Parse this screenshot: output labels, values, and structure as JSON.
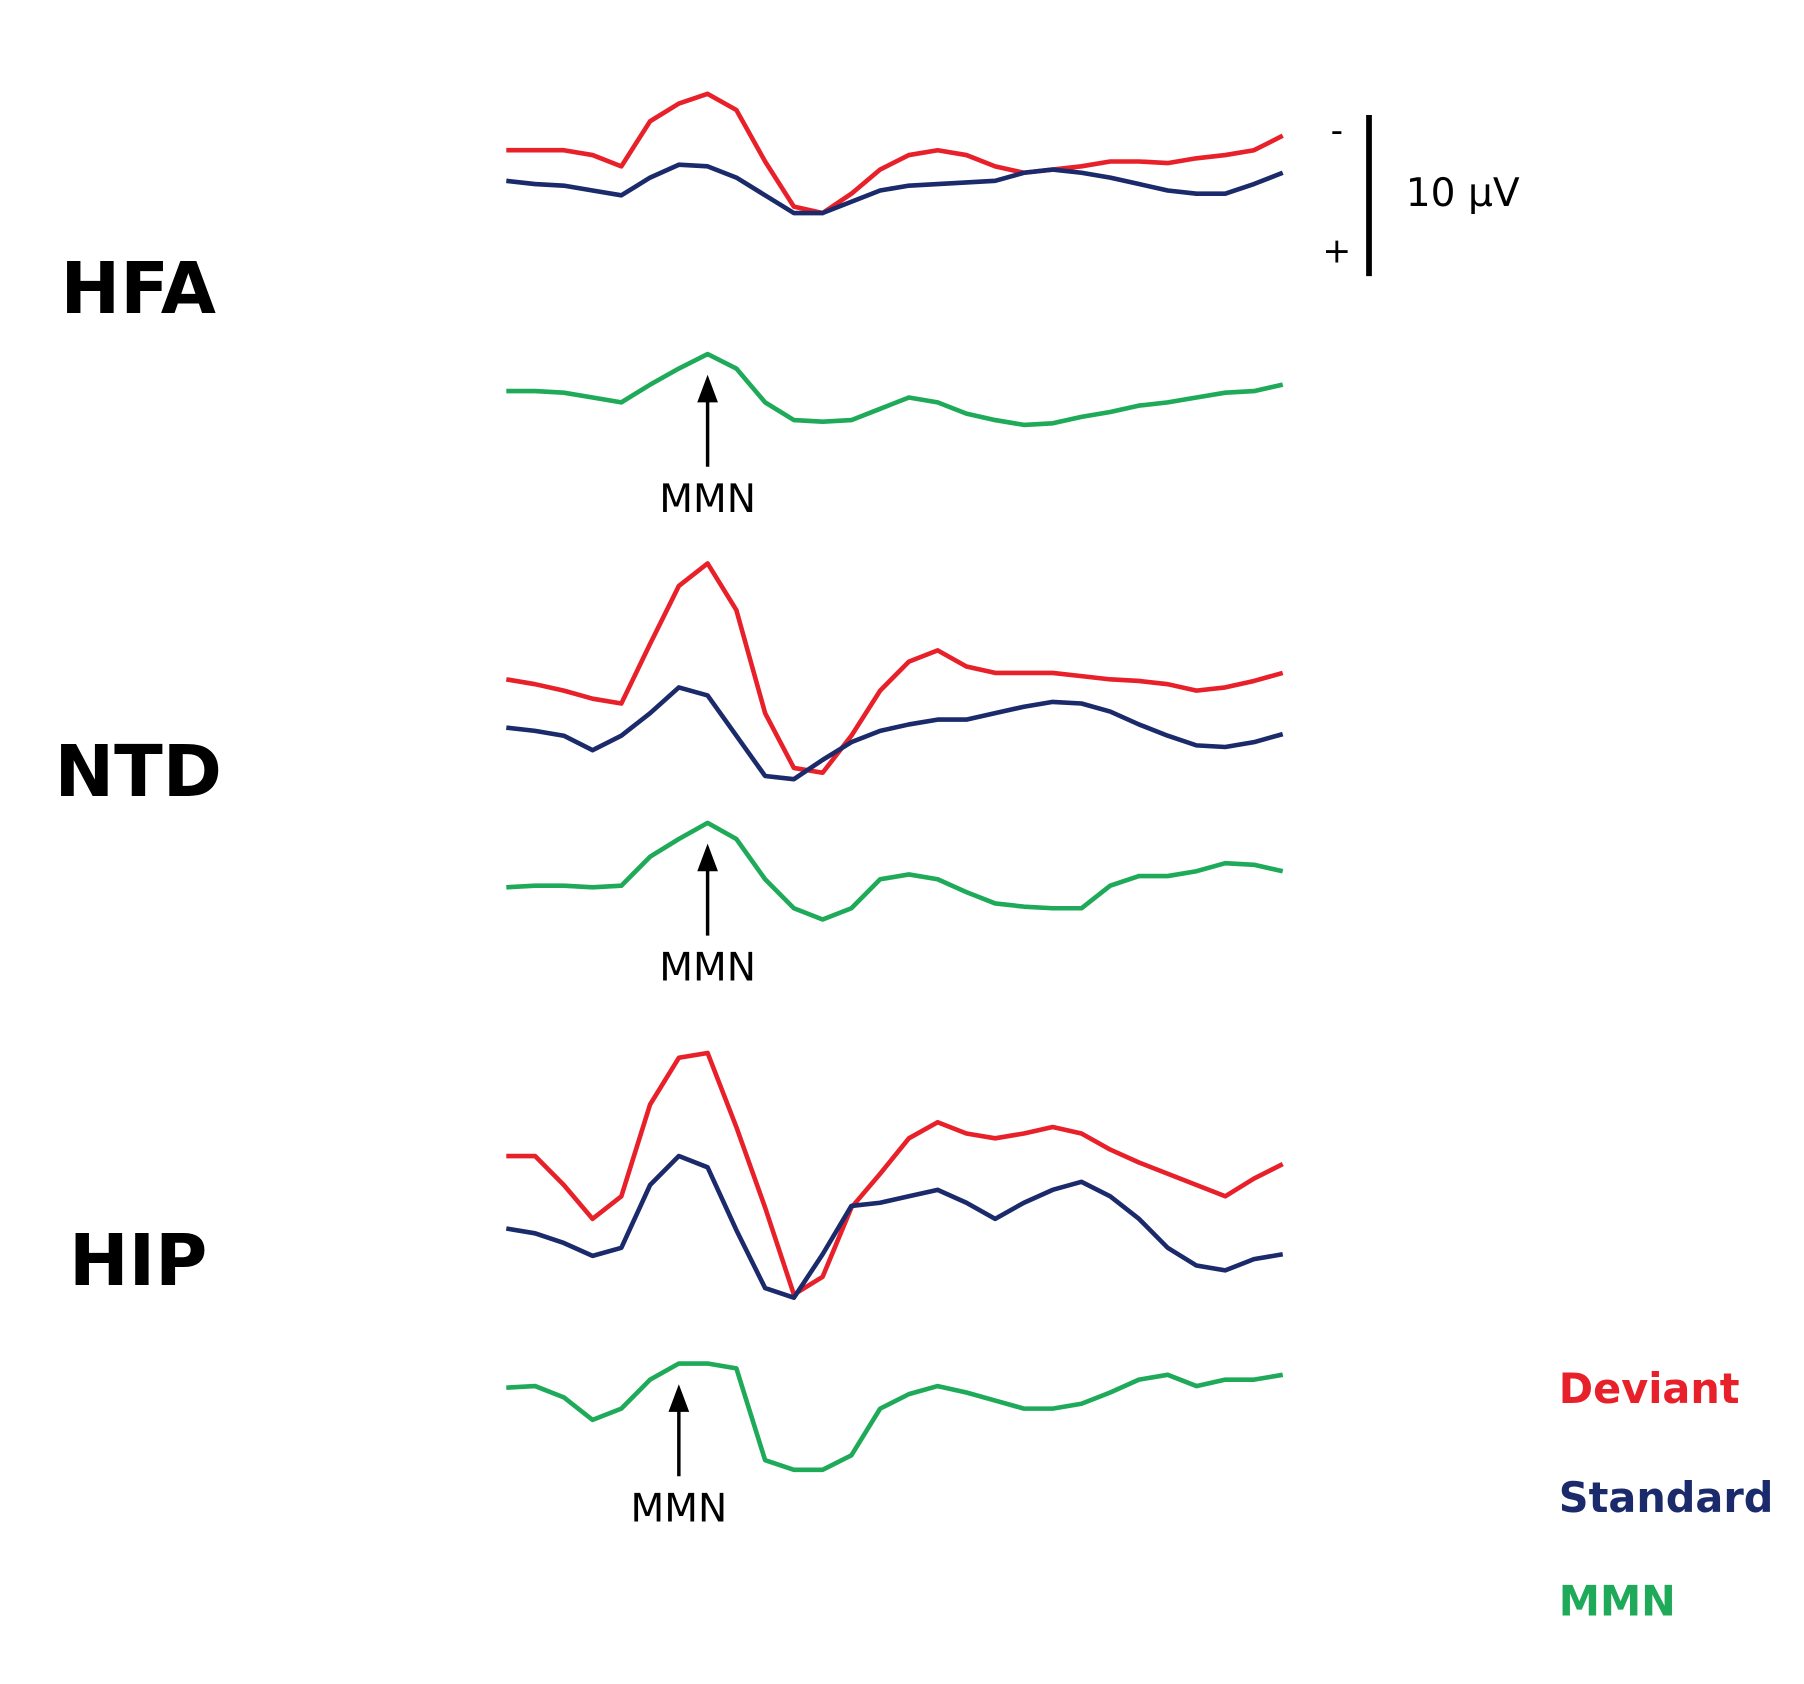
{
  "chart_data": [
    {
      "type": "line",
      "title": "HFA",
      "annotation": "MMN",
      "series": [
        {
          "color": "#e8202a",
          "values": [
            -2.1,
            -2.1,
            -2.1,
            -1.8,
            -1.1,
            -3.9,
            -5.0,
            -5.6,
            -4.6,
            -1.4,
            1.4,
            1.8,
            0.6,
            -0.9,
            -1.8,
            -2.1,
            -1.8,
            -1.1,
            -0.7,
            -0.9,
            -1.1,
            -1.4,
            -1.4,
            -1.3,
            -1.6,
            -1.8,
            -2.1,
            -3.0
          ]
        },
        {
          "color": "#1b2a6b",
          "values": [
            -0.2,
            0,
            0.1,
            0.4,
            0.7,
            -0.4,
            -1.2,
            -1.1,
            -0.4,
            0.7,
            1.8,
            1.8,
            1.1,
            0.4,
            0.1,
            0,
            -0.1,
            -0.2,
            -0.7,
            -0.9,
            -0.7,
            -0.4,
            0,
            0.4,
            0.6,
            0.6,
            0,
            -0.7
          ]
        },
        {
          "color": "#1faa5a",
          "values": [
            0,
            0,
            0.1,
            0.4,
            0.7,
            -0.4,
            -1.4,
            -2.3,
            -1.4,
            0.7,
            1.8,
            1.9,
            1.8,
            1.1,
            0.4,
            0.7,
            1.4,
            1.8,
            2.1,
            2.0,
            1.6,
            1.3,
            0.9,
            0.7,
            0.4,
            0.1,
            0,
            -0.4
          ]
        }
      ]
    },
    {
      "type": "line",
      "title": "NTD",
      "annotation": "MMN",
      "series": [
        {
          "color": "#e8202a",
          "values": [
            -2.1,
            -1.8,
            -1.4,
            -0.9,
            -0.6,
            -4.3,
            -7.9,
            -9.3,
            -6.4,
            0,
            3.4,
            3.7,
            1.4,
            -1.4,
            -3.2,
            -3.9,
            -2.9,
            -2.5,
            -2.5,
            -2.5,
            -2.3,
            -2.1,
            -2.0,
            -1.8,
            -1.4,
            -1.6,
            -2.0,
            -2.5
          ]
        },
        {
          "color": "#1b2a6b",
          "values": [
            0.9,
            1.1,
            1.4,
            2.3,
            1.4,
            0,
            -1.6,
            -1.1,
            1.4,
            3.9,
            4.1,
            2.9,
            1.8,
            1.1,
            0.7,
            0.4,
            0.4,
            0,
            -0.4,
            -0.7,
            -0.6,
            -0.1,
            0.7,
            1.4,
            2.0,
            2.1,
            1.8,
            1.3
          ]
        },
        {
          "color": "#1faa5a",
          "values": [
            0.1,
            0,
            0,
            0.1,
            0,
            -1.8,
            -2.9,
            -3.9,
            -2.9,
            -0.4,
            1.4,
            2.1,
            1.4,
            -0.4,
            -0.7,
            -0.4,
            0.4,
            1.1,
            1.3,
            1.4,
            1.4,
            0,
            -0.6,
            -0.6,
            -0.9,
            -1.4,
            -1.3,
            -0.9
          ]
        }
      ]
    },
    {
      "type": "line",
      "title": "HIP",
      "annotation": "MMN",
      "series": [
        {
          "color": "#e8202a",
          "values": [
            -2.5,
            -2.5,
            -0.7,
            1.4,
            0,
            -5.7,
            -8.6,
            -8.9,
            -4.3,
            0.7,
            6.1,
            5.0,
            0.7,
            -1.4,
            -3.6,
            -4.6,
            -3.9,
            -3.6,
            -3.9,
            -4.3,
            -3.9,
            -2.9,
            -2.1,
            -1.4,
            -0.7,
            0,
            -1.1,
            -2.0
          ]
        },
        {
          "color": "#1b2a6b",
          "values": [
            2.0,
            2.3,
            2.9,
            3.7,
            3.2,
            -0.7,
            -2.5,
            -1.8,
            2.1,
            5.7,
            6.3,
            3.6,
            0.6,
            0.4,
            0,
            -0.4,
            0.4,
            1.4,
            0.4,
            -0.4,
            -0.9,
            0,
            1.4,
            3.2,
            4.3,
            4.6,
            3.9,
            3.6
          ]
        },
        {
          "color": "#1faa5a",
          "values": [
            0.1,
            0,
            0.7,
            2.1,
            1.4,
            -0.4,
            -1.4,
            -1.4,
            -1.1,
            4.6,
            5.2,
            5.2,
            4.3,
            1.4,
            0.5,
            0,
            0.4,
            0.9,
            1.4,
            1.4,
            1.1,
            0.4,
            -0.4,
            -0.7,
            0,
            -0.4,
            -0.4,
            -0.7
          ]
        }
      ]
    }
  ],
  "legend": [
    "Deviant",
    "Standard",
    "MMN"
  ],
  "scale_bar": {
    "value": 10,
    "label": "10 µV",
    "top": "-",
    "bottom": "+"
  }
}
